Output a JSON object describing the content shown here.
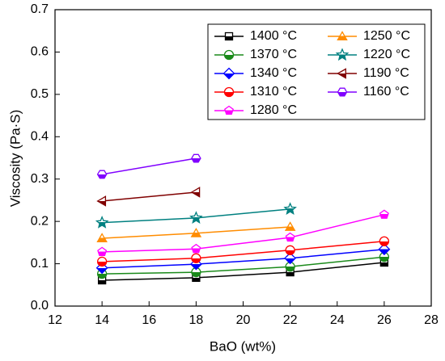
{
  "chart_data": {
    "type": "line",
    "xlabel": "BaO (wt%)",
    "ylabel": "Viscosity (Pa·S)",
    "x": [
      14,
      18,
      22,
      26
    ],
    "xlim": [
      12,
      28
    ],
    "xticks": [
      12,
      14,
      16,
      18,
      20,
      22,
      24,
      26,
      28
    ],
    "ylim": [
      0,
      0.7
    ],
    "yticks": [
      {
        "value": 0,
        "label": "0.0"
      },
      0.1,
      0.2,
      0.3,
      0.4,
      0.5,
      0.6,
      0.7
    ],
    "legend": "upper right",
    "series": [
      {
        "name": "1400 °C",
        "color": "#000000",
        "marker": "square",
        "values": [
          0.061,
          0.067,
          0.08,
          0.103
        ]
      },
      {
        "name": "1370 °C",
        "color": "#1a8a1a",
        "marker": "circle",
        "values": [
          0.076,
          0.08,
          0.093,
          0.116
        ]
      },
      {
        "name": "1340 °C",
        "color": "#0000ff",
        "marker": "diamond",
        "values": [
          0.09,
          0.099,
          0.113,
          0.134
        ]
      },
      {
        "name": "1310 °C",
        "color": "#ff0000",
        "marker": "circle",
        "values": [
          0.105,
          0.113,
          0.132,
          0.153
        ]
      },
      {
        "name": "1280 °C",
        "color": "#ff00ff",
        "marker": "pentagon",
        "values": [
          0.128,
          0.135,
          0.162,
          0.216
        ]
      },
      {
        "name": "1250 °C",
        "color": "#ff8c00",
        "marker": "triangle-up",
        "values": [
          0.16,
          0.172,
          0.187,
          null
        ]
      },
      {
        "name": "1220 °C",
        "color": "#008080",
        "marker": "star",
        "values": [
          0.197,
          0.208,
          0.229,
          null
        ]
      },
      {
        "name": "1190 °C",
        "color": "#800000",
        "marker": "triangle-left",
        "values": [
          0.248,
          0.269,
          null,
          null
        ]
      },
      {
        "name": "1160 °C",
        "color": "#8000ff",
        "marker": "hexagon",
        "values": [
          0.311,
          0.349,
          null,
          null
        ]
      }
    ]
  }
}
